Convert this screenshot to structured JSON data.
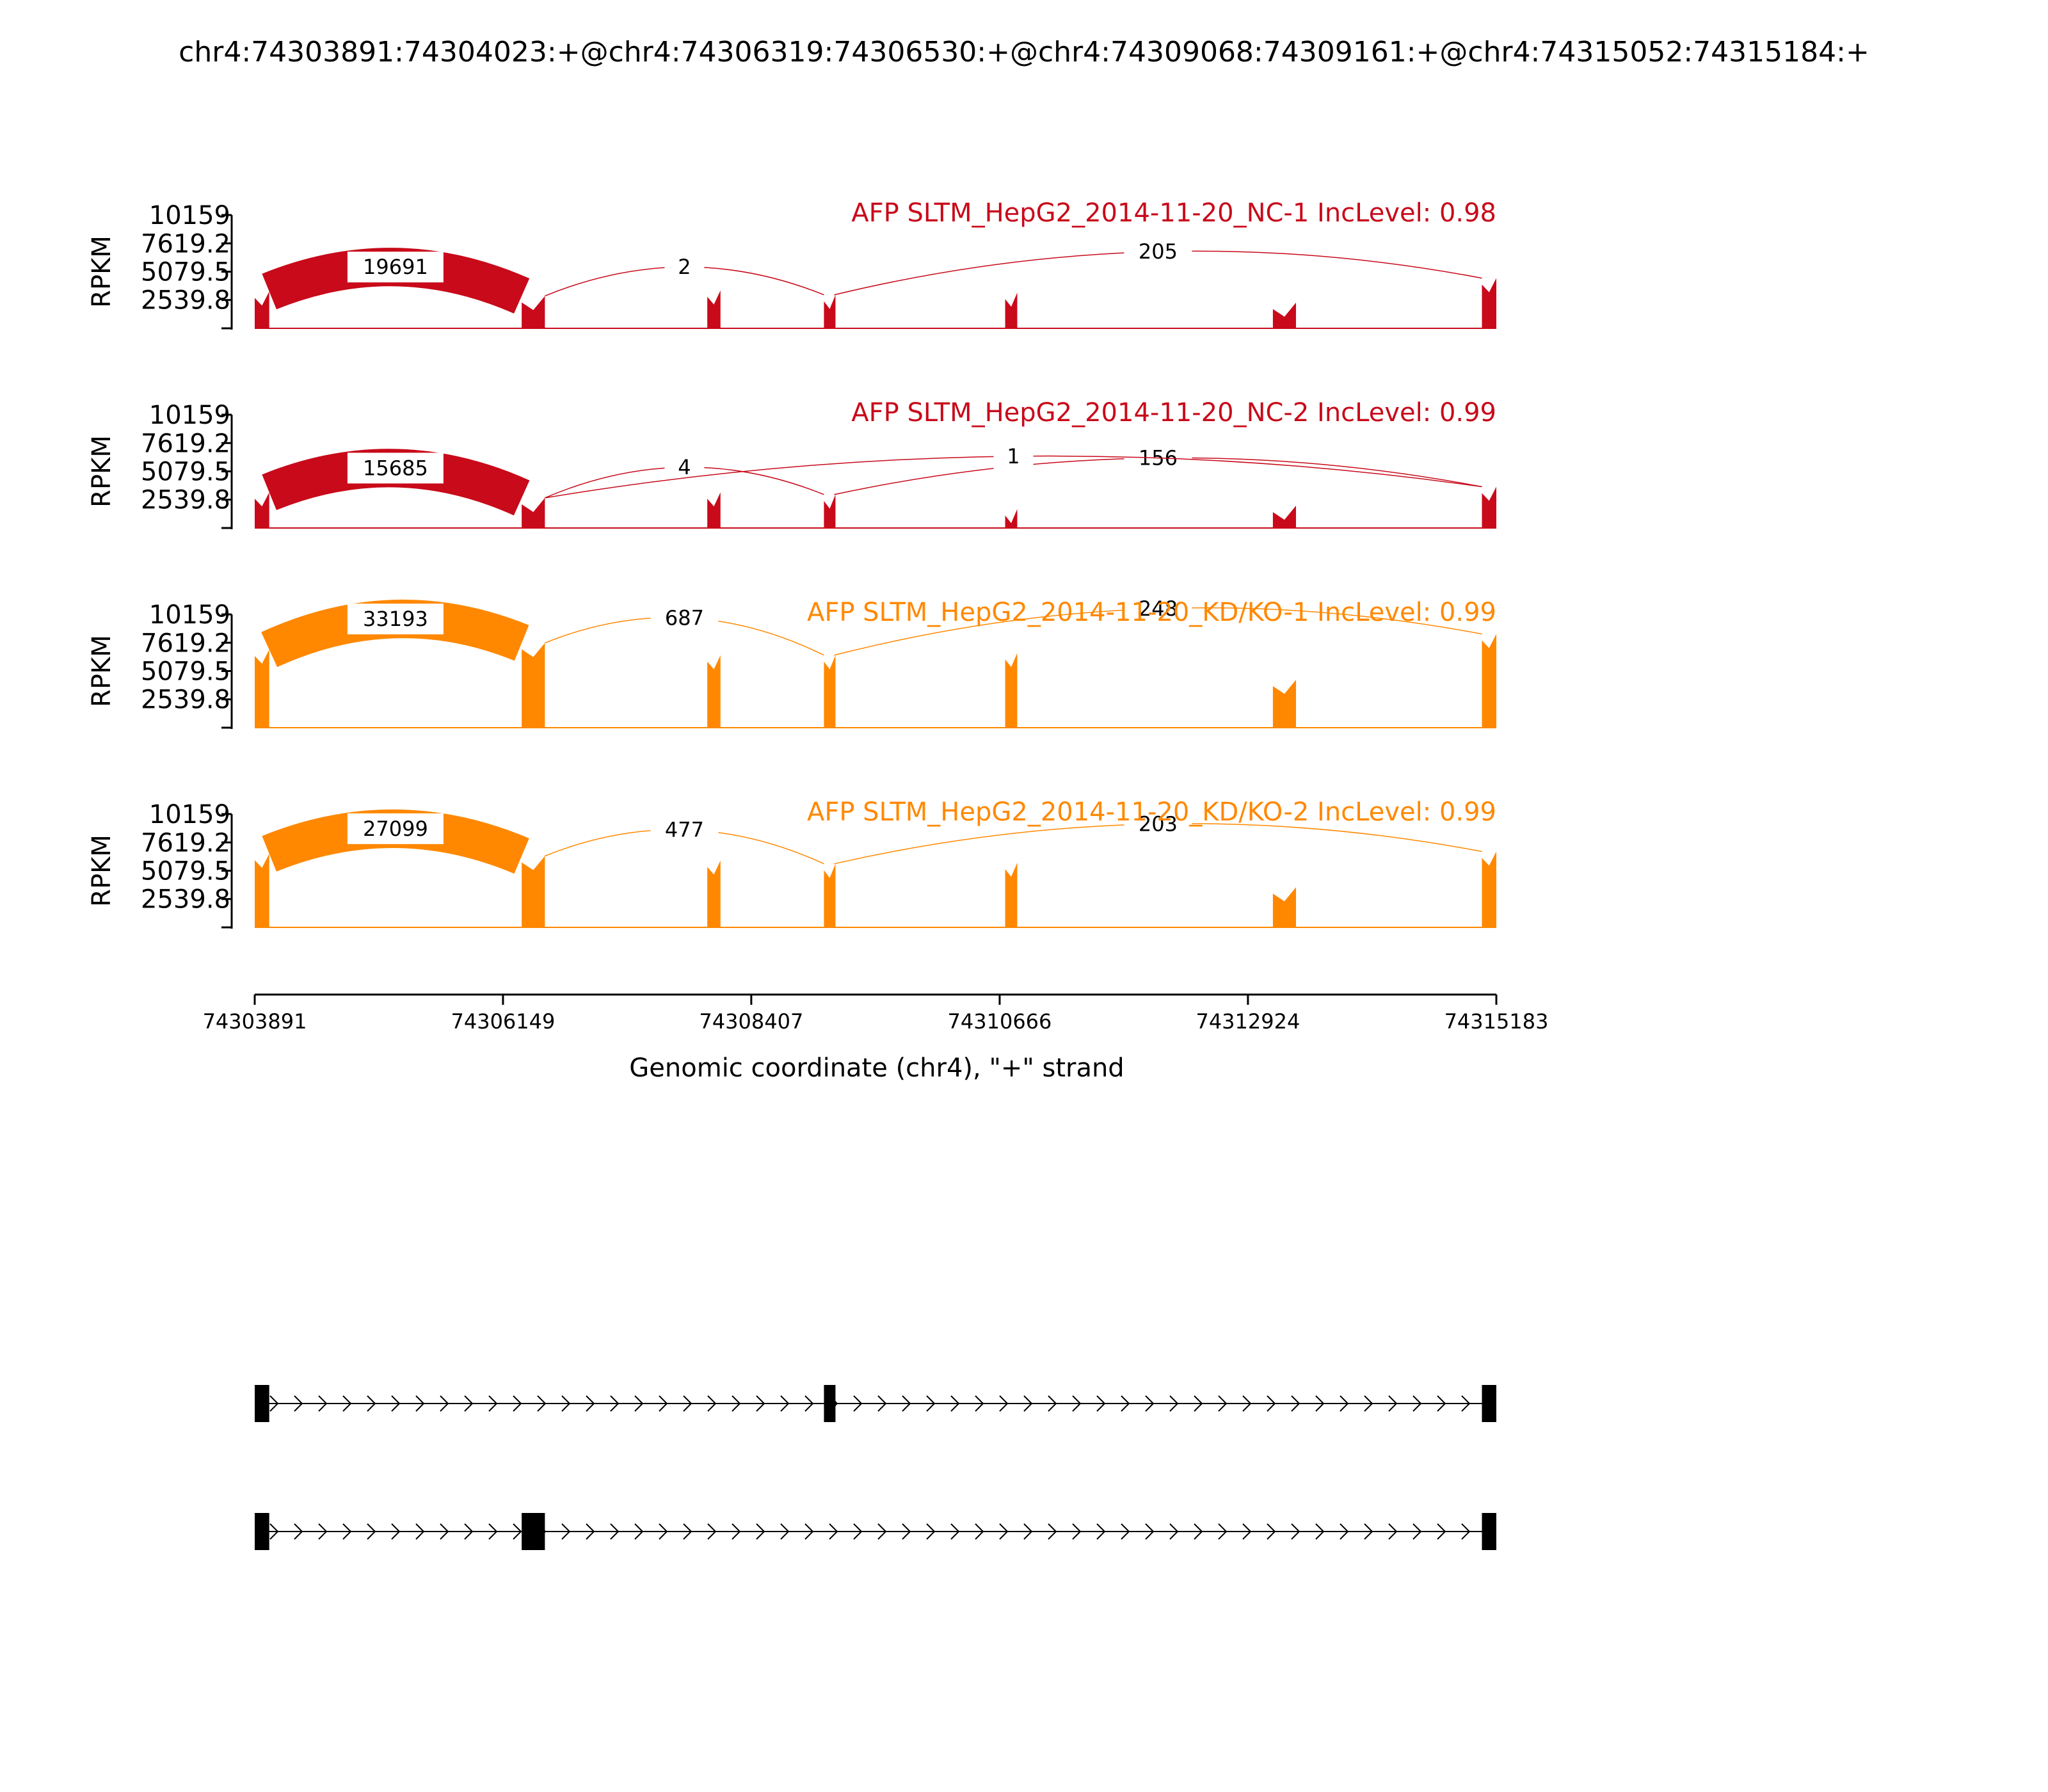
{
  "figure_title": "chr4:74303891:74304023:+@chr4:74306319:74306530:+@chr4:74309068:74309161:+@chr4:74315052:74315184:+",
  "chart_data": {
    "type": "area",
    "x_range": [
      74303891,
      74315183
    ],
    "x_ticks": [
      "74303891",
      "74306149",
      "74308407",
      "74310666",
      "74312924",
      "74315183"
    ],
    "xlabel": "Genomic coordinate (chr4), \"+\" strand",
    "ylabel": "RPKM",
    "y_ticks": [
      "10159",
      "7619.2",
      "5079.5",
      "2539.8"
    ],
    "ylim": [
      0,
      10159
    ],
    "exons": [
      {
        "start": 74303891,
        "end": 74304023
      },
      {
        "start": 74306319,
        "end": 74306530
      },
      {
        "start": 74308007,
        "end": 74308127
      },
      {
        "start": 74309068,
        "end": 74309161
      },
      {
        "start": 74310716,
        "end": 74310826
      },
      {
        "start": 74313151,
        "end": 74313361
      },
      {
        "start": 74315052,
        "end": 74315183
      }
    ],
    "tracks": [
      {
        "name": "AFP SLTM_HepG2_2014-11-20_NC-1 IncLevel: 0.98",
        "color": "#c80a1a",
        "exon_heights": [
          3300,
          2900,
          3400,
          3000,
          3200,
          2300,
          4500
        ],
        "junctions": [
          {
            "start": 74304023,
            "end": 74306319,
            "count": "19691",
            "weight": 19691,
            "above": true
          },
          {
            "start": 74306530,
            "end": 74309068,
            "count": "2",
            "weight": 2,
            "above": true
          },
          {
            "start": 74309161,
            "end": 74315052,
            "count": "205",
            "weight": 205,
            "above": true
          }
        ]
      },
      {
        "name": "AFP SLTM_HepG2_2014-11-20_NC-2 IncLevel: 0.99",
        "color": "#c80a1a",
        "exon_heights": [
          3200,
          2700,
          3200,
          3000,
          1700,
          2000,
          3700
        ],
        "junctions": [
          {
            "start": 74304023,
            "end": 74306319,
            "count": "15685",
            "weight": 15685,
            "above": true
          },
          {
            "start": 74306530,
            "end": 74309068,
            "count": "4",
            "weight": 4,
            "above": true
          },
          {
            "start": 74309161,
            "end": 74315052,
            "count": "156",
            "weight": 156,
            "above": true
          },
          {
            "start": 74306530,
            "end": 74315052,
            "count": "1",
            "weight": 1,
            "above": true
          }
        ]
      },
      {
        "name": "AFP SLTM_HepG2_2014-11-20_KD/KO-1 IncLevel: 0.99",
        "color": "#ff8800",
        "exon_heights": [
          7000,
          7600,
          6500,
          6500,
          6700,
          4300,
          8400
        ],
        "junctions": [
          {
            "start": 74304023,
            "end": 74306319,
            "count": "33193",
            "weight": 33193,
            "above": true
          },
          {
            "start": 74306530,
            "end": 74309068,
            "count": "687",
            "weight": 687,
            "above": true
          },
          {
            "start": 74309161,
            "end": 74315052,
            "count": "248",
            "weight": 248,
            "above": true
          }
        ]
      },
      {
        "name": "AFP SLTM_HepG2_2014-11-20_KD/KO-2 IncLevel: 0.99",
        "color": "#ff8800",
        "exon_heights": [
          6600,
          6400,
          6000,
          5700,
          5800,
          3600,
          6800
        ],
        "junctions": [
          {
            "start": 74304023,
            "end": 74306319,
            "count": "27099",
            "weight": 27099,
            "above": true
          },
          {
            "start": 74306530,
            "end": 74309068,
            "count": "477",
            "weight": 477,
            "above": true
          },
          {
            "start": 74309161,
            "end": 74315052,
            "count": "203",
            "weight": 203,
            "above": true
          }
        ]
      }
    ],
    "isoforms": [
      {
        "exons": [
          {
            "start": 74303891,
            "end": 74304023
          },
          {
            "start": 74309068,
            "end": 74309161
          },
          {
            "start": 74315052,
            "end": 74315183
          }
        ]
      },
      {
        "exons": [
          {
            "start": 74303891,
            "end": 74304023
          },
          {
            "start": 74306319,
            "end": 74306530
          },
          {
            "start": 74315052,
            "end": 74315183
          }
        ]
      }
    ]
  }
}
